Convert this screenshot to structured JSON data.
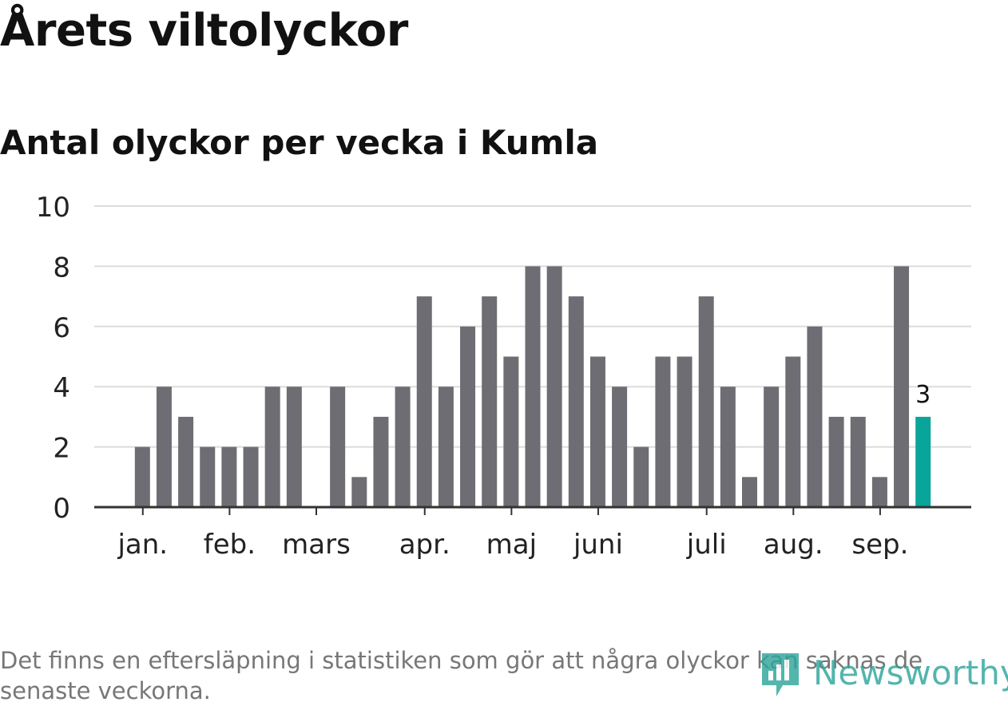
{
  "title": "Årets viltolyckor",
  "subtitle": "Antal olyckor per vecka i Kumla",
  "note": "Det finns en eftersläpning i statistiken som gör att några olyckor kan saknas de senaste veckorna.",
  "logo_text": "Newsworthy",
  "colors": {
    "bar": "#6e6d73",
    "highlight": "#0aa59a",
    "grid": "#dcdcdc",
    "axis": "#333333",
    "logo": "#2fa59c"
  },
  "chart_data": {
    "type": "bar",
    "title": "Antal olyckor per vecka i Kumla",
    "xlabel": "",
    "ylabel": "",
    "ylim": [
      0,
      10
    ],
    "yticks": [
      0,
      2,
      4,
      6,
      8,
      10
    ],
    "grid": true,
    "values": [
      2,
      4,
      3,
      2,
      2,
      2,
      4,
      4,
      0,
      4,
      1,
      3,
      4,
      7,
      4,
      6,
      7,
      5,
      8,
      8,
      7,
      5,
      4,
      2,
      5,
      5,
      7,
      4,
      1,
      4,
      5,
      6,
      3,
      3,
      1,
      8,
      3
    ],
    "highlight_index": 36,
    "highlight_label": "3",
    "month_labels": [
      {
        "label": "jan.",
        "week": 1
      },
      {
        "label": "feb.",
        "week": 5
      },
      {
        "label": "mars",
        "week": 9
      },
      {
        "label": "apr.",
        "week": 14
      },
      {
        "label": "maj",
        "week": 18
      },
      {
        "label": "juni",
        "week": 22
      },
      {
        "label": "juli",
        "week": 27
      },
      {
        "label": "aug.",
        "week": 31
      },
      {
        "label": "sep.",
        "week": 35
      }
    ]
  }
}
